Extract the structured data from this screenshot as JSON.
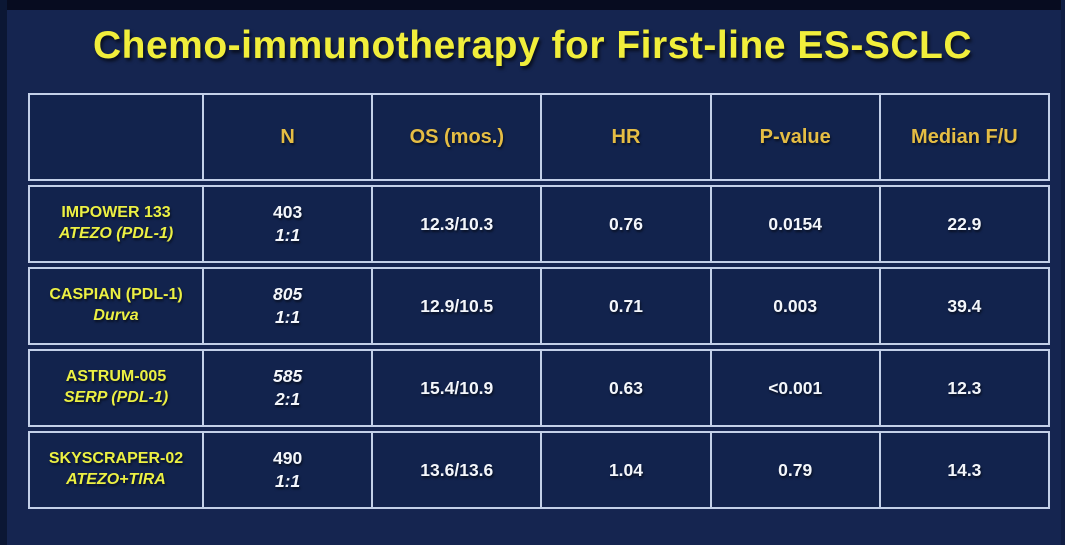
{
  "slide": {
    "title": "Chemo-immunotherapy for First-line ES-SCLC"
  },
  "table": {
    "columns": [
      "",
      "N",
      "OS (mos.)",
      "HR",
      "P-value",
      "Median F/U"
    ],
    "rows": [
      {
        "study_line1": "IMPOWER 133",
        "study_line2": "ATEZO (PDL-1)",
        "n": "403",
        "ratio": "1:1",
        "n_italic": false,
        "os": "12.3/10.3",
        "hr": "0.76",
        "p_value": "0.0154",
        "median_fu": "22.9"
      },
      {
        "study_line1": "CASPIAN (PDL-1)",
        "study_line2": "Durva",
        "n": "805",
        "ratio": "1:1",
        "n_italic": true,
        "os": "12.9/10.5",
        "hr": "0.71",
        "p_value": "0.003",
        "median_fu": "39.4"
      },
      {
        "study_line1": "ASTRUM-005",
        "study_line2": "SERP (PDL-1)",
        "n": "585",
        "ratio": "2:1",
        "n_italic": true,
        "os": "15.4/10.9",
        "hr": "0.63",
        "p_value": "<0.001",
        "median_fu": "12.3"
      },
      {
        "study_line1": "SKYSCRAPER-02",
        "study_line2": "ATEZO+TIRA",
        "n": "490",
        "ratio": "1:1",
        "n_italic": false,
        "os": "13.6/13.6",
        "hr": "1.04",
        "p_value": "0.79",
        "median_fu": "14.3"
      }
    ]
  },
  "colors": {
    "background": "#152550",
    "letterbox": "#070c20",
    "title_yellow": "#f1ee3b",
    "header_gold": "#e5bd44",
    "study_yellow": "#ecf043",
    "value_white": "#f3f6fb",
    "border": "#c3d0e8"
  }
}
